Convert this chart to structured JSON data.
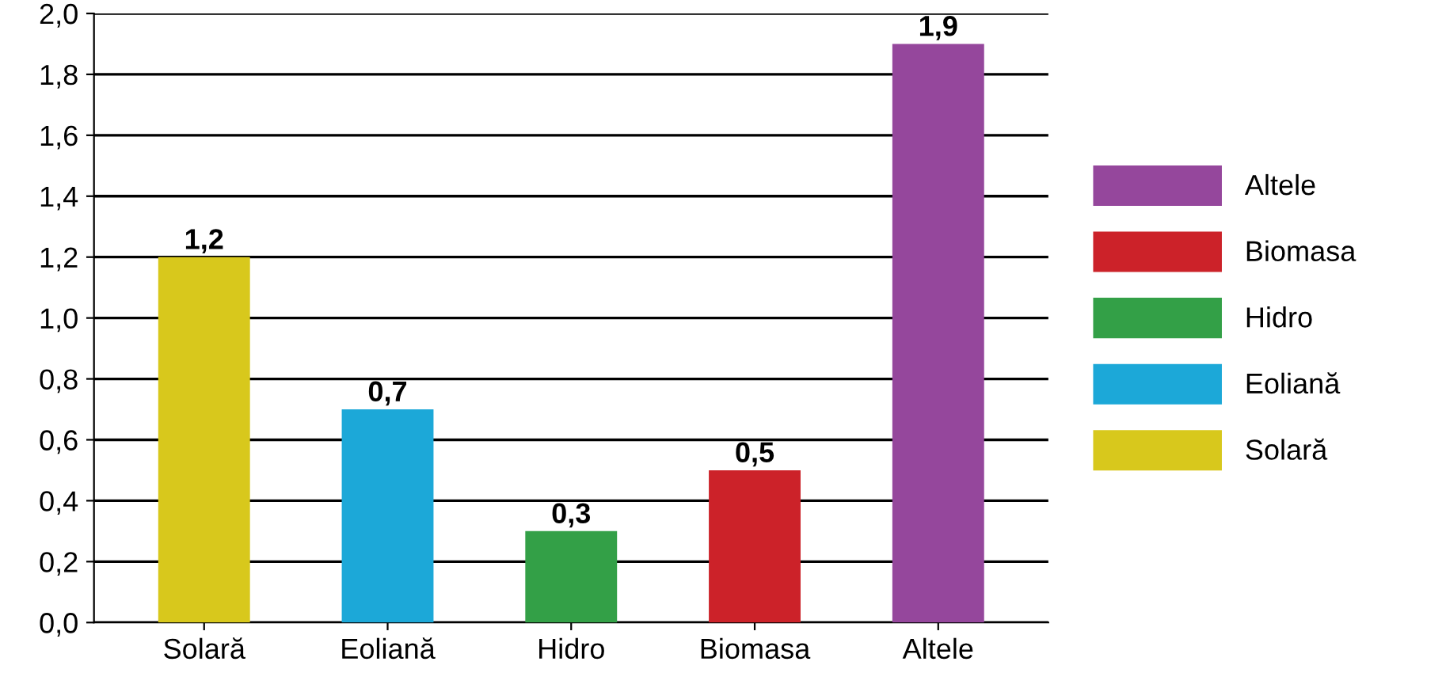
{
  "chart_data": {
    "type": "bar",
    "categories": [
      "Solară",
      "Eoliană",
      "Hidro",
      "Biomasa",
      "Altele"
    ],
    "series": [
      {
        "name": "Solară",
        "color": "#d8c81c",
        "values": [
          1.2,
          null,
          null,
          null,
          null
        ],
        "value_labels": [
          "1,2",
          null,
          null,
          null,
          null
        ]
      },
      {
        "name": "Eoliană",
        "color": "#1ca8d8",
        "values": [
          null,
          0.7,
          null,
          null,
          null
        ],
        "value_labels": [
          null,
          "0,7",
          null,
          null,
          null
        ]
      },
      {
        "name": "Hidro",
        "color": "#33a047",
        "values": [
          null,
          null,
          0.3,
          null,
          null
        ],
        "value_labels": [
          null,
          null,
          "0,3",
          null,
          null
        ]
      },
      {
        "name": "Biomasa",
        "color": "#cc2229",
        "values": [
          null,
          null,
          null,
          0.5,
          null
        ],
        "value_labels": [
          null,
          null,
          null,
          "0,5",
          null
        ]
      },
      {
        "name": "Altele",
        "color": "#95479c",
        "values": [
          null,
          null,
          null,
          null,
          1.9
        ],
        "value_labels": [
          null,
          null,
          null,
          null,
          "1,9"
        ]
      }
    ],
    "ylim": [
      0,
      2.0
    ],
    "yticks": [
      {
        "value": 0,
        "label": "0,0"
      },
      {
        "value": 0.2,
        "label": "0,2"
      },
      {
        "value": 0.4,
        "label": "0,4"
      },
      {
        "value": 0.6,
        "label": "0,6"
      },
      {
        "value": 0.8,
        "label": "0,8"
      },
      {
        "value": 1.0,
        "label": "1,0"
      },
      {
        "value": 1.2,
        "label": "1,2"
      },
      {
        "value": 1.4,
        "label": "1,4"
      },
      {
        "value": 1.6,
        "label": "1,6"
      },
      {
        "value": 1.8,
        "label": "1,8"
      },
      {
        "value": 2.0,
        "label": "2,0"
      }
    ],
    "grid": "y",
    "legend": "right"
  }
}
